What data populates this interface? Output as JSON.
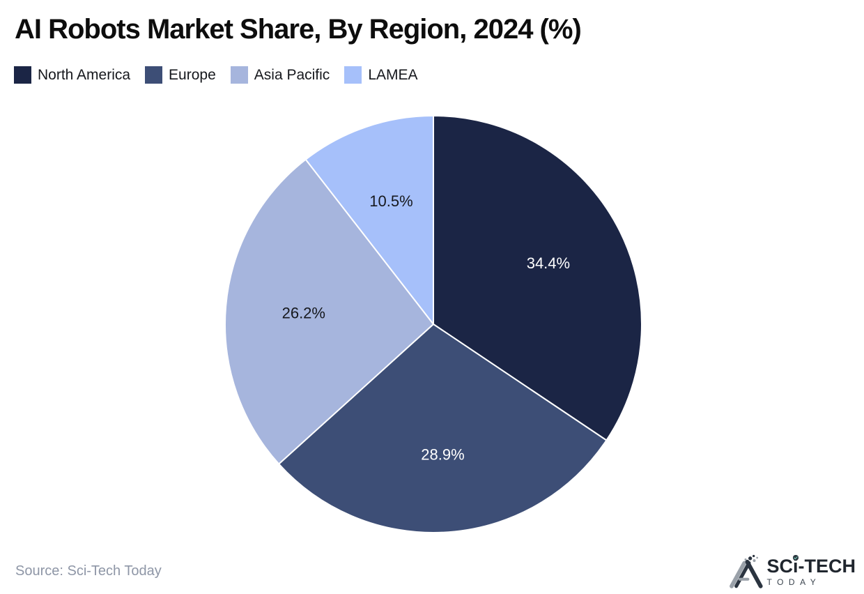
{
  "title": "AI Robots Market Share, By Region, 2024 (%)",
  "legend": {
    "items": [
      {
        "label": "North America",
        "color": "#1b2545"
      },
      {
        "label": "Europe",
        "color": "#3d4e76"
      },
      {
        "label": "Asia Pacific",
        "color": "#a6b5dd"
      },
      {
        "label": "LAMEA",
        "color": "#a6c0fa"
      }
    ]
  },
  "chart_data": {
    "type": "pie",
    "title": "AI Robots Market Share, By Region, 2024 (%)",
    "categories": [
      "North America",
      "Europe",
      "Asia Pacific",
      "LAMEA"
    ],
    "values": [
      34.4,
      28.9,
      26.2,
      10.5
    ],
    "labels": [
      "34.4%",
      "28.9%",
      "26.2%",
      "10.5%"
    ],
    "unit": "%",
    "colors": [
      "#1b2545",
      "#3d4e76",
      "#a6b5dd",
      "#a6c0fa"
    ],
    "label_colors": [
      "#ffffff",
      "#ffffff",
      "#16181d",
      "#16181d"
    ],
    "start_angle_deg": 0,
    "direction": "clockwise",
    "legend_position": "top-left"
  },
  "source_text": "Source: Sci-Tech Today",
  "logo": {
    "brand_sc": "SC",
    "brand_i": "i",
    "brand_tech": "-TECH",
    "brand_sub": "TODAY"
  }
}
